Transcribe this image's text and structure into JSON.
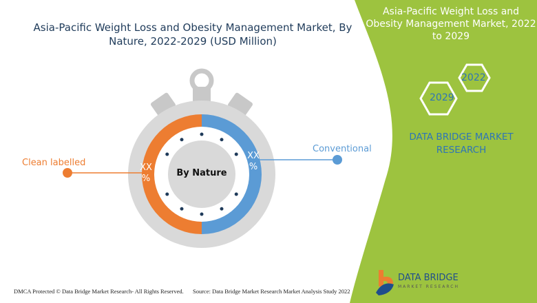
{
  "title": "Asia-Pacific Weight Loss and Obesity Management Market, By Nature, 2022-2029 (USD Million)",
  "side_title": "Asia-Pacific Weight Loss and Obesity Management Market, 2022 to 2029",
  "years": [
    "2022",
    "2029"
  ],
  "brand_text": "DATA BRIDGE MARKET RESEARCH",
  "center_label": "By Nature",
  "segments": [
    {
      "name": "Clean labelled",
      "value_label": "XX %",
      "color": "#ed7d31"
    },
    {
      "name": "Conventional",
      "value_label": "XX %",
      "color": "#5b9bd5"
    }
  ],
  "footer": {
    "dmca": "DMCA Protected © Data Bridge Market Research- All Rights Reserved.",
    "source": "Source: Data Bridge Market Research Market Analysis Study 2022"
  },
  "logo": {
    "name": "DATA BRIDGE",
    "sub": "MARKET RESEARCH"
  },
  "colors": {
    "green": "#9dc33f",
    "orange": "#ed7d31",
    "blue": "#5b9bd5",
    "gray": "#d9d9d9"
  }
}
